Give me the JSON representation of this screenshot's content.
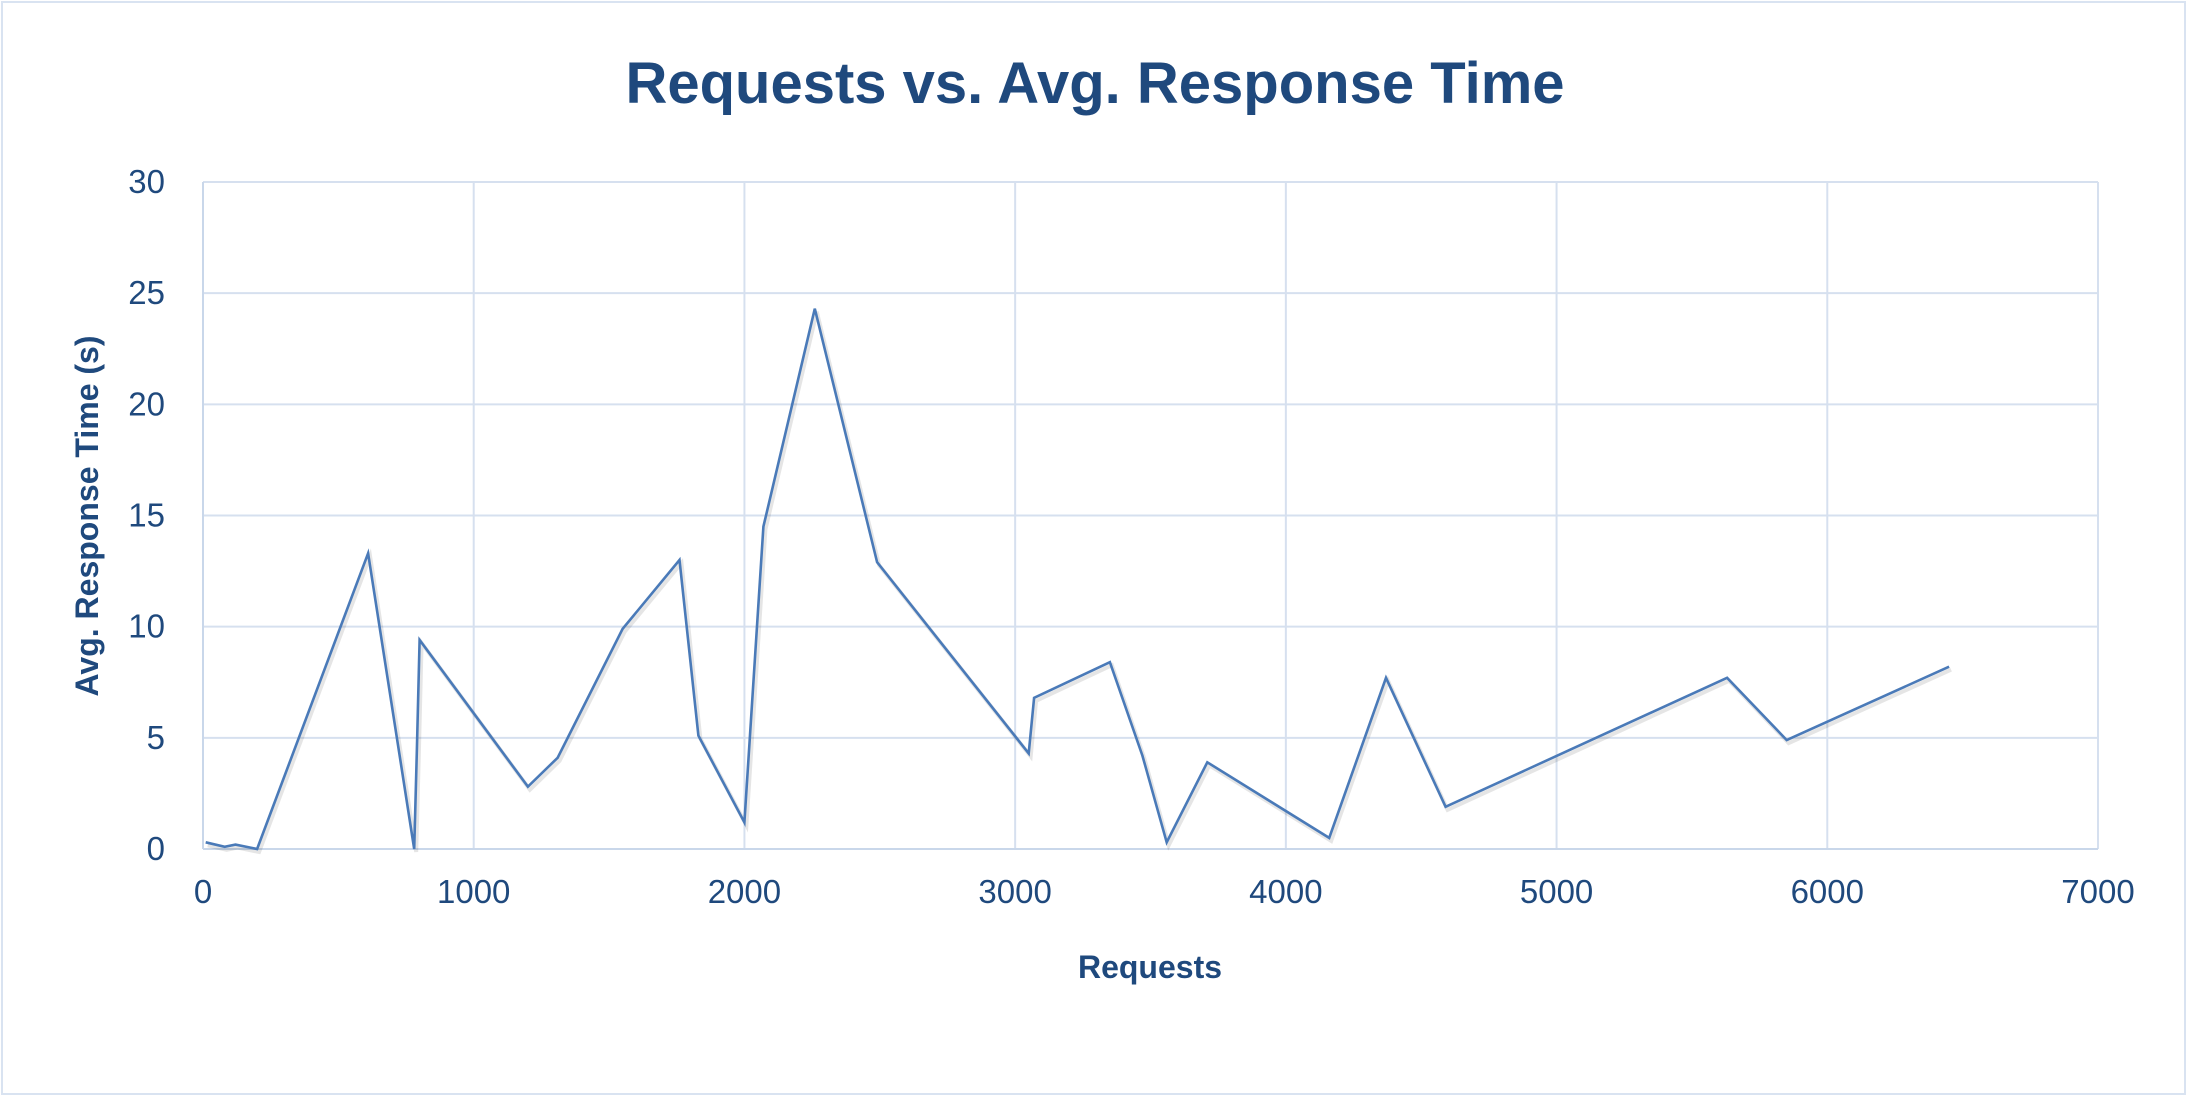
{
  "chart_data": {
    "type": "line",
    "title": "Requests vs. Avg. Response Time",
    "xlabel": "Requests",
    "ylabel": "Avg. Response Time (s)",
    "xlim": [
      0,
      7000
    ],
    "ylim": [
      0,
      30
    ],
    "x_ticks": [
      0,
      1000,
      2000,
      3000,
      4000,
      5000,
      6000,
      7000
    ],
    "y_ticks": [
      0,
      5,
      10,
      15,
      20,
      25,
      30
    ],
    "grid": true,
    "legend": "none",
    "series": [
      {
        "color": "#4a7ab8",
        "x": [
          10,
          80,
          120,
          200,
          610,
          780,
          790,
          800,
          1200,
          1310,
          1550,
          1760,
          1830,
          2000,
          2070,
          2260,
          2490,
          3050,
          3070,
          3350,
          3470,
          3560,
          3710,
          4160,
          4370,
          4590,
          5630,
          5850,
          6450
        ],
        "y": [
          0.3,
          0.1,
          0.2,
          0.0,
          13.3,
          0.0,
          4.5,
          9.4,
          2.8,
          4.1,
          9.9,
          13.0,
          5.1,
          1.2,
          14.5,
          24.3,
          12.9,
          4.3,
          6.8,
          8.4,
          4.2,
          0.3,
          3.9,
          0.5,
          7.7,
          1.9,
          7.7,
          4.9,
          8.2
        ]
      }
    ]
  }
}
